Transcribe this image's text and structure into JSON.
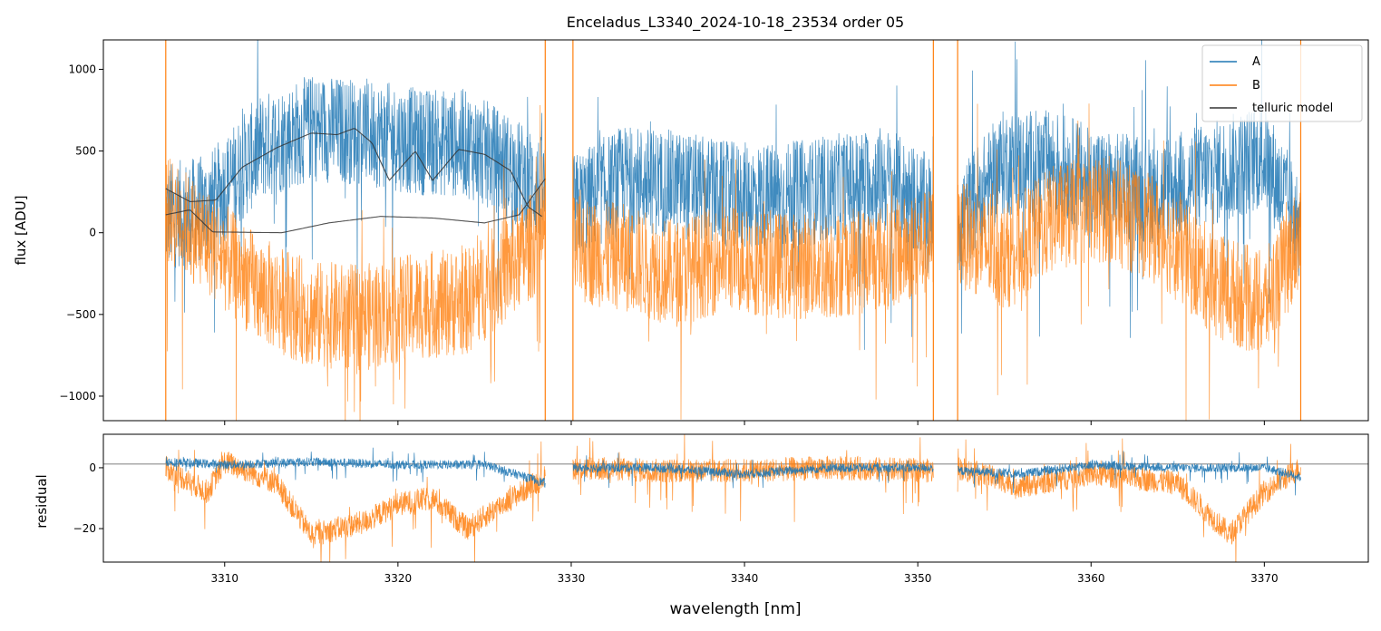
{
  "chart_data": [
    {
      "type": "line",
      "panel": "top",
      "title": "Enceladus_L3340_2024-10-18_23534  order 05",
      "xlabel": "",
      "ylabel": "flux [ADU]",
      "xlim": [
        3303,
        3376
      ],
      "ylim": [
        -1150,
        1180
      ],
      "yticks": [
        -1000,
        -500,
        0,
        500,
        1000
      ],
      "ytick_labels": [
        "−1000",
        "−500",
        "0",
        "500",
        "1000"
      ],
      "xticks": [
        3310,
        3320,
        3330,
        3340,
        3350,
        3360,
        3370
      ],
      "segments": [
        {
          "x_start": 3306.6,
          "x_end": 3328.5
        },
        {
          "x_start": 3330.1,
          "x_end": 3350.9
        },
        {
          "x_start": 3352.3,
          "x_end": 3372.1
        }
      ],
      "series": [
        {
          "name": "A",
          "color": "#1f77b4",
          "description": "noisy observed spectrum, approximate envelope",
          "x": [
            3306.6,
            3309,
            3312,
            3315,
            3318,
            3321,
            3324,
            3326,
            3328.5,
            3330.1,
            3333,
            3336,
            3339,
            3342,
            3345,
            3348,
            3350.9,
            3352.3,
            3355,
            3358,
            3361,
            3364,
            3367,
            3370,
            3372.1
          ],
          "y": [
            100,
            150,
            520,
            640,
            620,
            560,
            540,
            430,
            250,
            150,
            330,
            300,
            230,
            220,
            270,
            330,
            130,
            60,
            430,
            420,
            290,
            260,
            360,
            470,
            20
          ]
        },
        {
          "name": "B",
          "color": "#ff7f0e",
          "description": "noisy observed spectrum, approximate envelope",
          "x": [
            3306.6,
            3309,
            3312,
            3315,
            3318,
            3321,
            3324,
            3326,
            3328.5,
            3330.1,
            3333,
            3336,
            3339,
            3342,
            3345,
            3348,
            3350.9,
            3352.3,
            3355,
            3358,
            3361,
            3364,
            3367,
            3370,
            3372.1
          ],
          "y": [
            150,
            -50,
            -350,
            -500,
            -520,
            -450,
            -420,
            -250,
            0,
            -100,
            -150,
            -250,
            -150,
            -200,
            -200,
            -150,
            -50,
            0,
            -150,
            100,
            150,
            0,
            -300,
            -450,
            0
          ]
        },
        {
          "name": "telluric model",
          "color": "#333333",
          "description": "smooth model curve A",
          "x": [
            3306.6,
            3308,
            3309.5,
            3311,
            3313,
            3315,
            3316.5,
            3317.5,
            3318.5,
            3319.5,
            3321,
            3322,
            3323.5,
            3325,
            3326.5,
            3327.5,
            3328.3
          ],
          "y": [
            270,
            190,
            200,
            400,
            520,
            610,
            600,
            640,
            550,
            320,
            500,
            320,
            510,
            480,
            380,
            160,
            100
          ]
        },
        {
          "name": "telluric model (B)",
          "color": "#333333",
          "description": "smooth model curve B",
          "x": [
            3306.6,
            3308,
            3309.3,
            3313.3,
            3316,
            3319,
            3322,
            3325,
            3327,
            3328.5
          ],
          "y": [
            110,
            140,
            5,
            0,
            60,
            100,
            90,
            60,
            110,
            330
          ]
        }
      ],
      "legend": {
        "position": "top-right",
        "entries": [
          "A",
          "B",
          "telluric model"
        ]
      }
    },
    {
      "type": "line",
      "panel": "bottom",
      "xlabel": "wavelength [nm]",
      "ylabel": "residual",
      "xlim": [
        3303,
        3376
      ],
      "ylim": [
        -31,
        11
      ],
      "yticks": [
        -20,
        0
      ],
      "ytick_labels": [
        "−20",
        "0"
      ],
      "xticks": [
        3310,
        3320,
        3330,
        3340,
        3350,
        3360,
        3370
      ],
      "xtick_labels": [
        "3310",
        "3320",
        "3330",
        "3340",
        "3350",
        "3360",
        "3370"
      ],
      "zero_line": 1.2,
      "series": [
        {
          "name": "A",
          "color": "#1f77b4",
          "x": [
            3306.6,
            3310,
            3315,
            3320,
            3325,
            3328.5,
            3330.1,
            3335,
            3340,
            3345,
            3350.9,
            3352.3,
            3356,
            3360,
            3365,
            3370,
            3372.1
          ],
          "y": [
            2,
            1,
            2,
            1,
            1,
            -5,
            0,
            0,
            -2,
            0,
            0,
            -1,
            -2,
            1,
            0,
            0,
            -3
          ]
        },
        {
          "name": "B",
          "color": "#ff7f0e",
          "x": [
            3306.6,
            3309,
            3310,
            3313,
            3315,
            3318,
            3320,
            3322,
            3324,
            3326,
            3328.5,
            3330.1,
            3335,
            3340,
            3345,
            3350.9,
            3352.3,
            3356,
            3360,
            3365,
            3368,
            3370,
            3372.1
          ],
          "y": [
            0,
            -8,
            2,
            -5,
            -22,
            -18,
            -12,
            -10,
            -20,
            -12,
            -3,
            0,
            -1,
            -1,
            0,
            -1,
            0,
            -6,
            -2,
            -5,
            -22,
            -8,
            0
          ]
        }
      ]
    }
  ]
}
